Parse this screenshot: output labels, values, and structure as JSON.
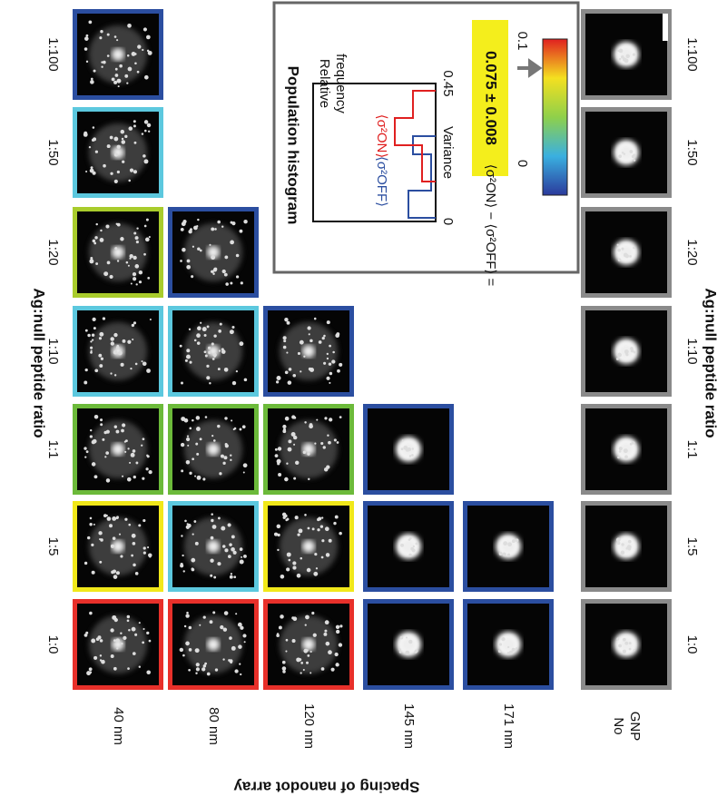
{
  "axis_labels": {
    "top": "Ag:null peptide ratio",
    "right": "Ag:null peptide ratio",
    "bottom": "Spacing of nanodot array"
  },
  "ratios": [
    "1:0",
    "1:5",
    "1:1",
    "1:10",
    "1:20",
    "1:50",
    "1:100"
  ],
  "rows": [
    {
      "label": "40 nm",
      "border_colors": [
        "#e8302a",
        "#f1e81a",
        "#6cba3a",
        "#5cc8de",
        "#a9cc2c",
        "#5cc8de",
        "#2b4ea0"
      ]
    },
    {
      "label": "80 nm",
      "border_colors": [
        "#e8302a",
        "#5cc8de",
        "#6cba3a",
        "#5cc8de",
        "#2b4ea0"
      ]
    },
    {
      "label": "120 nm",
      "border_colors": [
        "#e8302a",
        "#f1e81a",
        "#6cba3a",
        "#2b4ea0"
      ]
    },
    {
      "label": "145 nm",
      "border_colors": [
        "#2b4ea0",
        "#2b4ea0",
        "#2b4ea0"
      ]
    },
    {
      "label": "171 nm",
      "border_colors": [
        "#2b4ea0",
        "#2b4ea0"
      ]
    },
    {
      "label": [
        "No",
        "GNP"
      ],
      "border_colors": [
        "#8a8a8a",
        "#8a8a8a",
        "#8a8a8a",
        "#8a8a8a",
        "#8a8a8a",
        "#8a8a8a",
        "#8a8a8a"
      ]
    }
  ],
  "inset": {
    "title": "Population histogram",
    "ylabel": [
      "Relative",
      "frequency"
    ],
    "xlabel": "Variance",
    "ticks": [
      "0",
      "0.45"
    ],
    "on_label": "⟨σ²ON⟩",
    "off_label": "⟨σ²OFF⟩",
    "equation": "⟨σ²ON⟩ − ⟨σ²OFF⟩ =",
    "result": "0.075 ± 0.008",
    "colorbar_ticks": [
      "0",
      "0.1"
    ]
  }
}
